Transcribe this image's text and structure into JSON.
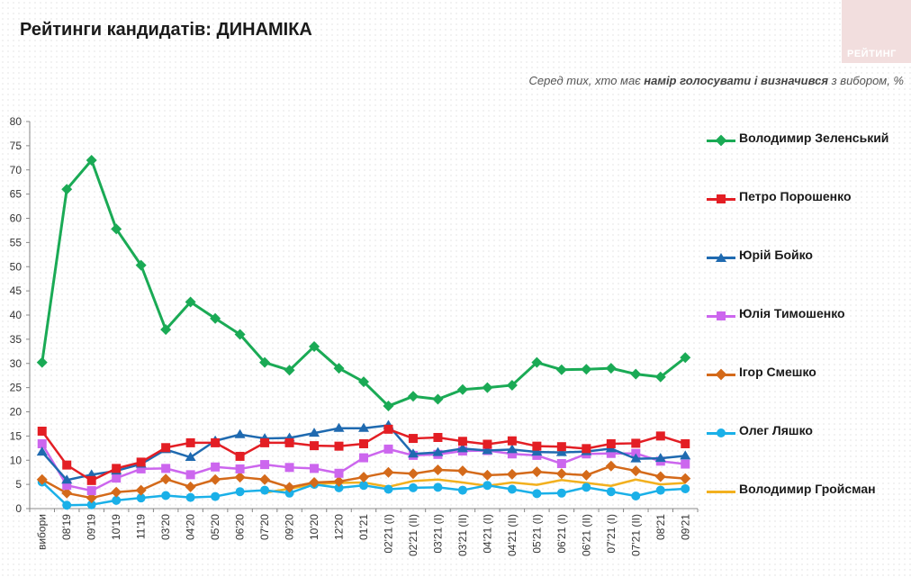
{
  "page": {
    "title": "Рейтинги кандидатів: ДИНАМІКА",
    "brand": "РЕЙТИНГ",
    "subtitle_pre": "Серед тих, хто має ",
    "subtitle_bold": "намір голосувати і визначився",
    "subtitle_post": " з вибором, %"
  },
  "chart_data": {
    "type": "line",
    "title": "Рейтинги кандидатів: ДИНАМІКА",
    "ylabel": "%",
    "ylim": [
      0,
      80
    ],
    "yticks": [
      0,
      5,
      10,
      15,
      20,
      25,
      30,
      35,
      40,
      45,
      50,
      55,
      60,
      65,
      70,
      75,
      80
    ],
    "grid": false,
    "legend": "right",
    "categories": [
      "вибори",
      "08'19",
      "09'19",
      "10'19",
      "11'19",
      "03'20",
      "04'20",
      "05'20",
      "06'20",
      "07'20",
      "09'20",
      "10'20",
      "12'20",
      "01'21",
      "02'21 (I)",
      "02'21 (II)",
      "03'21 (I)",
      "03'21 (II)",
      "04'21 (I)",
      "04'21 (II)",
      "05'21 (I)",
      "06'21 (I)",
      "06'21 (II)",
      "07'21 (I)",
      "07'21 (II)",
      "08'21",
      "09'21"
    ],
    "series": [
      {
        "name": "Володимир Зеленський",
        "color": "#1aaa55",
        "marker": "diamond",
        "values": [
          30.2,
          66,
          72,
          57.8,
          50.3,
          37,
          42.7,
          39.3,
          36,
          30.2,
          28.6,
          33.5,
          29,
          26.2,
          21.2,
          23.2,
          22.6,
          24.6,
          25,
          25.5,
          30.2,
          28.7,
          28.8,
          29,
          27.8,
          27.2,
          31.2
        ]
      },
      {
        "name": "Петро Порошенко",
        "color": "#e31e24",
        "marker": "square",
        "values": [
          16,
          9,
          5.8,
          8.3,
          9.6,
          12.6,
          13.6,
          13.6,
          10.8,
          13.6,
          13.6,
          13,
          12.9,
          13.4,
          16.4,
          14.5,
          14.7,
          13.9,
          13.3,
          14,
          12.9,
          12.8,
          12.4,
          13.4,
          13.5,
          15,
          13.4
        ]
      },
      {
        "name": "Юрій Бойко",
        "color": "#1f6ab0",
        "marker": "triangle",
        "values": [
          11.7,
          5.9,
          7,
          7.8,
          9.2,
          12.2,
          10.6,
          14,
          15.3,
          14.5,
          14.6,
          15.6,
          16.6,
          16.6,
          17.2,
          11.3,
          11.6,
          12.4,
          12,
          12.2,
          11.7,
          11.6,
          11.8,
          12.4,
          10.3,
          10.4,
          10.9
        ]
      },
      {
        "name": "Юлія Тимошенко",
        "color": "#cc66ee",
        "marker": "square",
        "values": [
          13.4,
          4.8,
          3.7,
          6.3,
          8.2,
          8.3,
          7,
          8.6,
          8.2,
          9.1,
          8.5,
          8.3,
          7.3,
          10.5,
          12.3,
          11,
          11.2,
          11.9,
          12,
          11.3,
          11,
          9.3,
          11.3,
          11.4,
          11.4,
          9.8,
          9.2
        ]
      },
      {
        "name": "Ігор Смешко",
        "color": "#d46a1a",
        "marker": "diamond",
        "values": [
          6,
          3.2,
          2.2,
          3.4,
          3.8,
          6.1,
          4.5,
          6,
          6.5,
          6,
          4.4,
          5.4,
          5.6,
          6.5,
          7.5,
          7.2,
          8,
          7.8,
          6.9,
          7.1,
          7.6,
          7.2,
          6.9,
          8.8,
          7.8,
          6.6,
          6.2
        ]
      },
      {
        "name": "Олег Ляшко",
        "color": "#1ab0e8",
        "marker": "circle",
        "values": [
          5.5,
          0.7,
          0.8,
          1.7,
          2.2,
          2.7,
          2.3,
          2.5,
          3.5,
          3.8,
          3.2,
          5,
          4.3,
          4.8,
          4,
          4.3,
          4.4,
          3.8,
          4.8,
          4,
          3.1,
          3.2,
          4.4,
          3.5,
          2.6,
          3.8,
          4.1
        ]
      },
      {
        "name": "Володимир Гройсман",
        "color": "#f2b01e",
        "marker": "none",
        "values": [
          null,
          null,
          null,
          null,
          null,
          null,
          null,
          null,
          null,
          3.3,
          4.1,
          5.1,
          5.3,
          5.4,
          4.5,
          5.7,
          6,
          5.4,
          4.7,
          5.4,
          4.9,
          5.9,
          5.3,
          4.7,
          6,
          5,
          5.3
        ]
      }
    ]
  }
}
